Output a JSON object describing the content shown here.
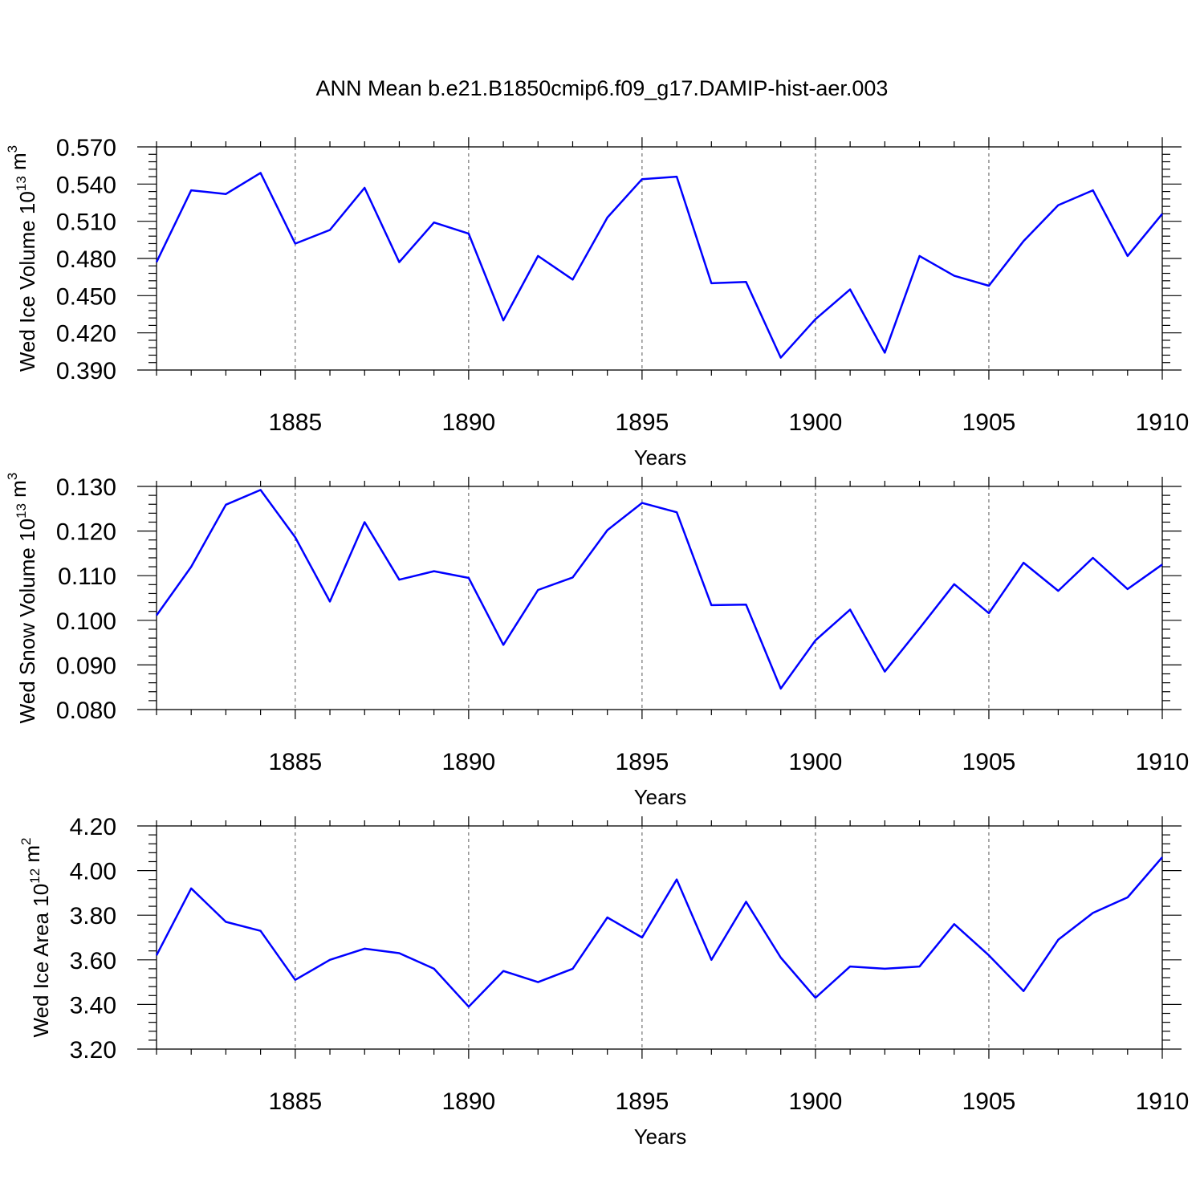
{
  "title": "ANN Mean b.e21.B1850cmip6.f09_g17.DAMIP-hist-aer.003",
  "series_color": "#0000ff",
  "chart_data": [
    {
      "type": "line",
      "ylabel": "Wed Ice Volume 10",
      "ylabel_exp": "13",
      "ylabel_unit": " m",
      "ylabel_unit_exp": "3",
      "xlabel": "Years",
      "xlim": [
        1881,
        1910
      ],
      "ylim": [
        0.39,
        0.57
      ],
      "yticks": [
        "0.390",
        "0.420",
        "0.450",
        "0.480",
        "0.510",
        "0.540",
        "0.570"
      ],
      "xticks": [
        "1885",
        "1890",
        "1895",
        "1900",
        "1905",
        "1910"
      ],
      "grid": "vertical dashed at major x ticks",
      "x": [
        1881,
        1882,
        1883,
        1884,
        1885,
        1886,
        1887,
        1888,
        1889,
        1890,
        1891,
        1892,
        1893,
        1894,
        1895,
        1896,
        1897,
        1898,
        1899,
        1900,
        1901,
        1902,
        1903,
        1904,
        1905,
        1906,
        1907,
        1908,
        1909,
        1910
      ],
      "values": [
        0.477,
        0.535,
        0.532,
        0.549,
        0.492,
        0.503,
        0.537,
        0.477,
        0.509,
        0.5,
        0.43,
        0.482,
        0.463,
        0.513,
        0.544,
        0.546,
        0.46,
        0.461,
        0.4,
        0.431,
        0.455,
        0.404,
        0.482,
        0.466,
        0.458,
        0.494,
        0.523,
        0.535,
        0.482,
        0.516
      ]
    },
    {
      "type": "line",
      "ylabel": "Wed Snow Volume 10",
      "ylabel_exp": "13",
      "ylabel_unit": " m",
      "ylabel_unit_exp": "3",
      "xlabel": "Years",
      "xlim": [
        1881,
        1910
      ],
      "ylim": [
        0.08,
        0.13
      ],
      "yticks": [
        "0.080",
        "0.090",
        "0.100",
        "0.110",
        "0.120",
        "0.130"
      ],
      "xticks": [
        "1885",
        "1890",
        "1895",
        "1900",
        "1905",
        "1910"
      ],
      "grid": "vertical dashed at major x ticks",
      "x": [
        1881,
        1882,
        1883,
        1884,
        1885,
        1886,
        1887,
        1888,
        1889,
        1890,
        1891,
        1892,
        1893,
        1894,
        1895,
        1896,
        1897,
        1898,
        1899,
        1900,
        1901,
        1902,
        1903,
        1904,
        1905,
        1906,
        1907,
        1908,
        1909,
        1910
      ],
      "values": [
        0.1011,
        0.112,
        0.1259,
        0.1292,
        0.1186,
        0.1042,
        0.122,
        0.1091,
        0.111,
        0.1095,
        0.0945,
        0.1068,
        0.1096,
        0.1202,
        0.1263,
        0.1242,
        0.1034,
        0.1035,
        0.0847,
        0.0955,
        0.1024,
        0.0885,
        0.0982,
        0.1081,
        0.1016,
        0.1129,
        0.1066,
        0.114,
        0.107,
        0.1125
      ]
    },
    {
      "type": "line",
      "ylabel": "Wed Ice Area 10",
      "ylabel_exp": "12",
      "ylabel_unit": " m",
      "ylabel_unit_exp": "2",
      "xlabel": "Years",
      "xlim": [
        1881,
        1910
      ],
      "ylim": [
        3.2,
        4.2
      ],
      "yticks": [
        "3.20",
        "3.40",
        "3.60",
        "3.80",
        "4.00",
        "4.20"
      ],
      "xticks": [
        "1885",
        "1890",
        "1895",
        "1900",
        "1905",
        "1910"
      ],
      "grid": "vertical dashed at major x ticks",
      "x": [
        1881,
        1882,
        1883,
        1884,
        1885,
        1886,
        1887,
        1888,
        1889,
        1890,
        1891,
        1892,
        1893,
        1894,
        1895,
        1896,
        1897,
        1898,
        1899,
        1900,
        1901,
        1902,
        1903,
        1904,
        1905,
        1906,
        1907,
        1908,
        1909,
        1910
      ],
      "values": [
        3.62,
        3.92,
        3.77,
        3.73,
        3.51,
        3.6,
        3.65,
        3.63,
        3.56,
        3.39,
        3.55,
        3.5,
        3.56,
        3.79,
        3.7,
        3.96,
        3.6,
        3.86,
        3.61,
        3.43,
        3.57,
        3.56,
        3.57,
        3.76,
        3.62,
        3.46,
        3.69,
        3.81,
        3.88,
        4.06
      ]
    }
  ]
}
